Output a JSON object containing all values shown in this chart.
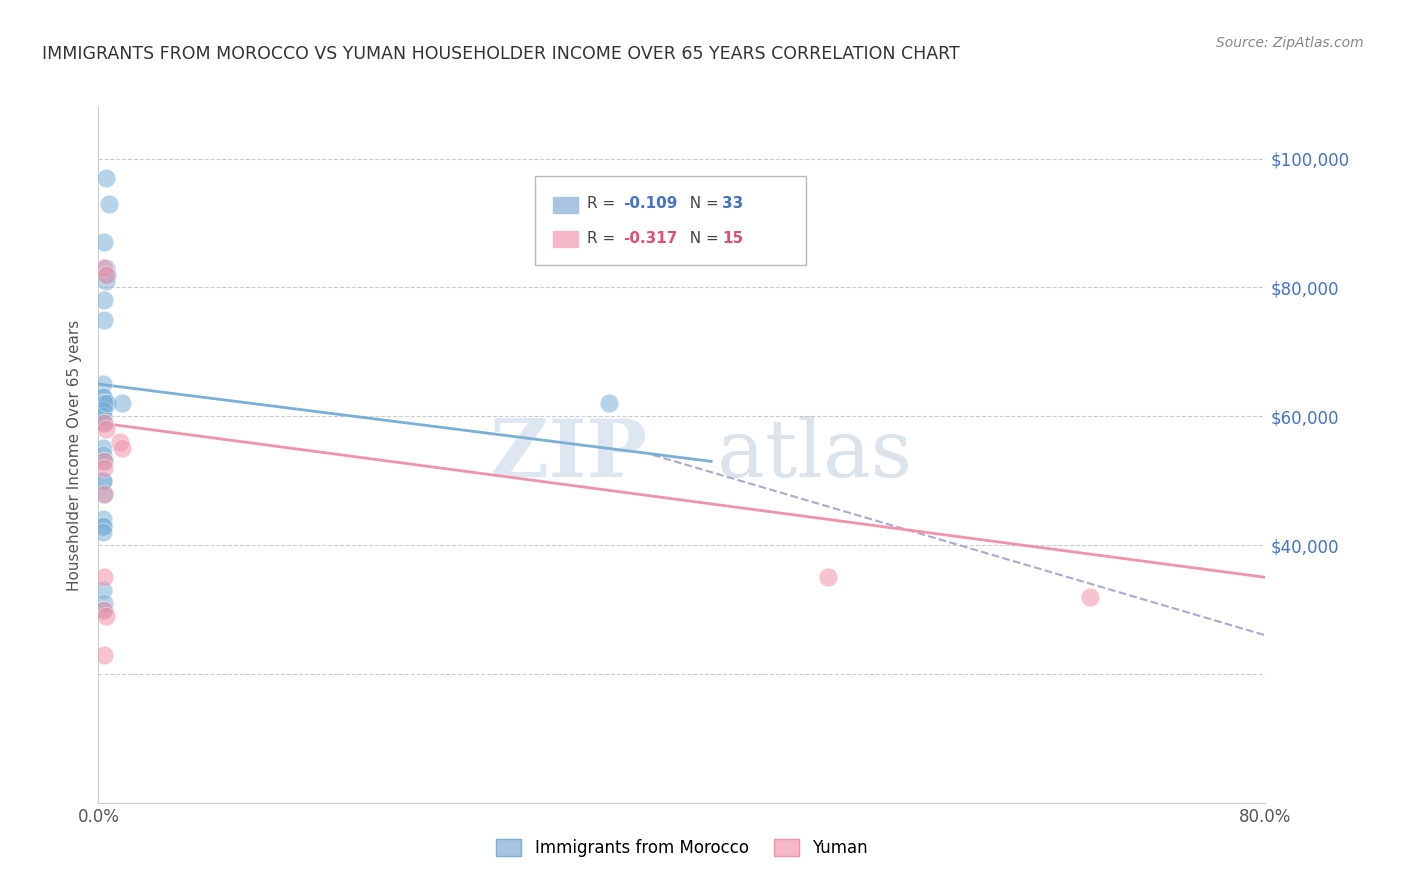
{
  "title": "IMMIGRANTS FROM MOROCCO VS YUMAN HOUSEHOLDER INCOME OVER 65 YEARS CORRELATION CHART",
  "source": "Source: ZipAtlas.com",
  "ylabel": "Householder Income Over 65 years",
  "x_min": 0.0,
  "x_max": 0.8,
  "y_min": 0,
  "y_max": 108000,
  "watermark_zip": "ZIP",
  "watermark_atlas": "atlas",
  "blue_scatter_x": [
    0.005,
    0.007,
    0.004,
    0.005,
    0.006,
    0.005,
    0.004,
    0.004,
    0.003,
    0.003,
    0.003,
    0.004,
    0.004,
    0.003,
    0.003,
    0.003,
    0.004,
    0.003,
    0.003,
    0.004,
    0.006,
    0.003,
    0.004,
    0.003,
    0.003,
    0.003,
    0.004,
    0.003,
    0.016,
    0.003,
    0.003,
    0.003,
    0.35
  ],
  "blue_scatter_y": [
    97000,
    93000,
    87000,
    83000,
    82000,
    81000,
    78000,
    75000,
    65000,
    63000,
    63000,
    62000,
    62000,
    61000,
    61000,
    60000,
    59000,
    55000,
    54000,
    53000,
    62000,
    50000,
    48000,
    44000,
    43000,
    33000,
    31000,
    30000,
    62000,
    50000,
    43000,
    42000,
    62000
  ],
  "pink_scatter_x": [
    0.004,
    0.005,
    0.004,
    0.005,
    0.015,
    0.016,
    0.004,
    0.004,
    0.004,
    0.004,
    0.004,
    0.004,
    0.5,
    0.68,
    0.005
  ],
  "pink_scatter_y": [
    83000,
    82000,
    59000,
    58000,
    56000,
    55000,
    53000,
    52000,
    48000,
    35000,
    30000,
    23000,
    35000,
    32000,
    29000
  ],
  "blue_line_x": [
    0.0,
    0.42
  ],
  "blue_line_y": [
    65000,
    53000
  ],
  "pink_line_x": [
    0.0,
    0.8
  ],
  "pink_line_y": [
    59000,
    35000
  ],
  "dashed_line_x": [
    0.38,
    0.8
  ],
  "dashed_line_y": [
    54000,
    26000
  ],
  "grid_y": [
    20000,
    40000,
    60000,
    80000,
    100000
  ],
  "x_ticks": [
    0.0,
    0.2,
    0.4,
    0.6,
    0.8
  ],
  "x_tick_labels": [
    "0.0%",
    "",
    "",
    "",
    "80.0%"
  ],
  "right_y_ticks": [
    40000,
    60000,
    80000,
    100000
  ],
  "right_y_labels": [
    "$40,000",
    "$60,000",
    "$80,000",
    "$100,000"
  ],
  "background_color": "#ffffff",
  "blue_color": "#7ab0d8",
  "pink_color": "#f093a8",
  "dashed_color": "#aaaacc",
  "grid_color": "#cccccc",
  "title_color": "#333333",
  "right_label_color": "#4472c4",
  "legend_blue_face": "#a8c4e0",
  "legend_pink_face": "#f4b8c8",
  "r_blue_color": "#4472c4",
  "r_pink_color": "#e05070"
}
